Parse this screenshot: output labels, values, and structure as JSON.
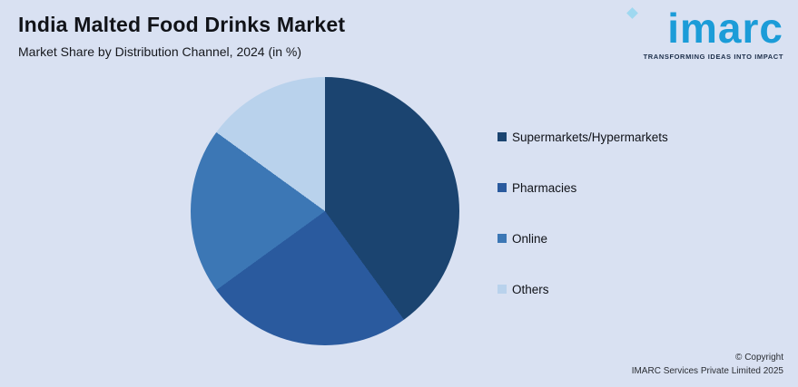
{
  "header": {
    "title": "India Malted Food Drinks Market",
    "subtitle": "Market Share by Distribution Channel, 2024 (in %)"
  },
  "logo": {
    "text": "imarc",
    "tagline": "TRANSFORMING IDEAS INTO IMPACT",
    "brand_color": "#1b9cd8",
    "beacon_color": "#9fd8f0"
  },
  "chart_data": {
    "type": "pie",
    "title": "India Malted Food Drinks Market",
    "subtitle": "Market Share by Distribution Channel, 2024 (in %)",
    "labels": [
      "Supermarkets/Hypermarkets",
      "Pharmacies",
      "Online",
      "Others"
    ],
    "values": [
      40,
      25,
      20,
      15
    ],
    "unit": "%",
    "colors": [
      "#1b4470",
      "#2a5a9e",
      "#3c77b5",
      "#b9d2ec"
    ],
    "start_angle_deg": 0,
    "direction": "clockwise",
    "legend_position": "right",
    "data_labels_shown": false
  },
  "footer": {
    "line1": "© Copyright",
    "line2": "IMARC Services Private Limited 2025"
  },
  "colors": {
    "background": "#d9e1f2"
  }
}
